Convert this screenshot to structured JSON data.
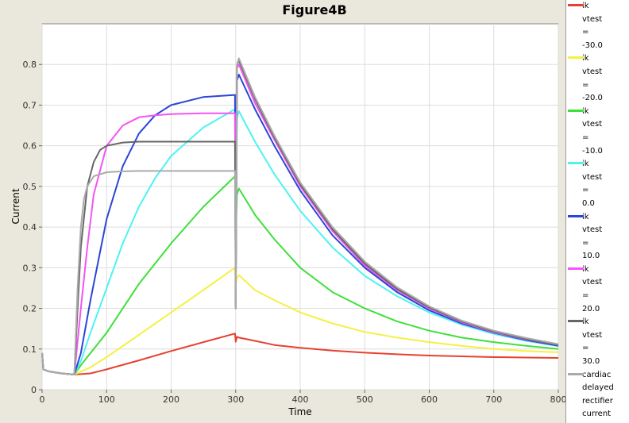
{
  "chart_data": {
    "type": "line",
    "title": "Figure4B",
    "xlabel": "Time",
    "ylabel": "Current",
    "xlim": [
      0,
      800
    ],
    "ylim": [
      0,
      0.9
    ],
    "xticks": [
      "0",
      "100",
      "200",
      "300",
      "400",
      "500",
      "600",
      "700",
      "800"
    ],
    "yticks": [
      "0",
      "0.1",
      "0.2",
      "0.3",
      "0.4",
      "0.5",
      "0.6",
      "0.7",
      "0.8"
    ],
    "grid": true,
    "legend_position": "right",
    "series": [
      {
        "name": "ik\nvtest\n=\n-30.0",
        "color": "#e8412f",
        "x": [
          0,
          2,
          10,
          30,
          50,
          75,
          100,
          150,
          200,
          250,
          299,
          300,
          302,
          305,
          330,
          360,
          400,
          450,
          500,
          550,
          600,
          650,
          700,
          750,
          800
        ],
        "y": [
          0.09,
          0.05,
          0.045,
          0.04,
          0.037,
          0.04,
          0.05,
          0.072,
          0.095,
          0.117,
          0.138,
          0.118,
          0.13,
          0.128,
          0.12,
          0.11,
          0.103,
          0.096,
          0.091,
          0.087,
          0.084,
          0.082,
          0.08,
          0.079,
          0.078
        ]
      },
      {
        "name": "ik\nvtest\n=\n-20.0",
        "color": "#f5f043",
        "x": [
          0,
          2,
          10,
          30,
          50,
          75,
          100,
          150,
          200,
          250,
          299,
          300,
          302,
          305,
          330,
          360,
          400,
          450,
          500,
          550,
          600,
          650,
          700,
          750,
          800
        ],
        "y": [
          0.09,
          0.05,
          0.045,
          0.04,
          0.037,
          0.055,
          0.08,
          0.135,
          0.19,
          0.245,
          0.3,
          0.26,
          0.275,
          0.282,
          0.245,
          0.22,
          0.19,
          0.163,
          0.142,
          0.128,
          0.117,
          0.108,
          0.1,
          0.095,
          0.092
        ]
      },
      {
        "name": "ik\nvtest\n=\n-10.0",
        "color": "#3fe03a",
        "x": [
          0,
          2,
          10,
          30,
          50,
          60,
          75,
          100,
          150,
          200,
          250,
          299,
          300,
          302,
          305,
          330,
          360,
          400,
          450,
          500,
          550,
          600,
          650,
          700,
          750,
          800
        ],
        "y": [
          0.09,
          0.05,
          0.045,
          0.04,
          0.037,
          0.06,
          0.09,
          0.14,
          0.26,
          0.36,
          0.45,
          0.525,
          0.37,
          0.48,
          0.495,
          0.43,
          0.37,
          0.3,
          0.24,
          0.2,
          0.168,
          0.145,
          0.128,
          0.117,
          0.108,
          0.1
        ]
      },
      {
        "name": "ik\nvtest\n=\n0.0",
        "color": "#4ff2f2",
        "x": [
          0,
          2,
          10,
          30,
          50,
          60,
          75,
          100,
          125,
          150,
          175,
          200,
          250,
          299,
          300,
          302,
          305,
          330,
          360,
          400,
          450,
          500,
          550,
          600,
          650,
          700,
          750,
          800
        ],
        "y": [
          0.09,
          0.05,
          0.045,
          0.04,
          0.037,
          0.07,
          0.14,
          0.25,
          0.36,
          0.45,
          0.52,
          0.575,
          0.645,
          0.69,
          0.25,
          0.67,
          0.685,
          0.61,
          0.53,
          0.44,
          0.35,
          0.28,
          0.23,
          0.19,
          0.16,
          0.137,
          0.12,
          0.107
        ]
      },
      {
        "name": "ik\nvtest\n=\n10.0",
        "color": "#2b45d8",
        "x": [
          0,
          2,
          10,
          30,
          50,
          60,
          75,
          100,
          125,
          150,
          175,
          200,
          250,
          299,
          300,
          302,
          305,
          330,
          360,
          400,
          450,
          500,
          550,
          600,
          650,
          700,
          750,
          800
        ],
        "y": [
          0.09,
          0.05,
          0.045,
          0.04,
          0.037,
          0.09,
          0.22,
          0.42,
          0.55,
          0.63,
          0.675,
          0.7,
          0.72,
          0.725,
          0.21,
          0.76,
          0.775,
          0.69,
          0.6,
          0.49,
          0.38,
          0.3,
          0.24,
          0.195,
          0.163,
          0.14,
          0.122,
          0.108
        ]
      },
      {
        "name": "ik\nvtest\n=\n20.0",
        "color": "#f454f4",
        "x": [
          0,
          2,
          10,
          30,
          50,
          60,
          70,
          80,
          100,
          125,
          150,
          175,
          200,
          250,
          299,
          300,
          302,
          305,
          330,
          360,
          400,
          450,
          500,
          550,
          600,
          650,
          700,
          750,
          800
        ],
        "y": [
          0.09,
          0.05,
          0.045,
          0.04,
          0.037,
          0.2,
          0.35,
          0.48,
          0.6,
          0.65,
          0.67,
          0.675,
          0.678,
          0.68,
          0.68,
          0.2,
          0.79,
          0.8,
          0.705,
          0.615,
          0.5,
          0.39,
          0.305,
          0.245,
          0.2,
          0.166,
          0.141,
          0.124,
          0.11
        ]
      },
      {
        "name": "ik\nvtest\n=\n30.0",
        "color": "#666666",
        "x": [
          0,
          2,
          10,
          30,
          50,
          55,
          60,
          70,
          80,
          90,
          100,
          125,
          150,
          200,
          250,
          299,
          300,
          302,
          305,
          330,
          360,
          400,
          450,
          500,
          550,
          600,
          650,
          700,
          750,
          800
        ],
        "y": [
          0.09,
          0.05,
          0.045,
          0.04,
          0.037,
          0.2,
          0.35,
          0.5,
          0.56,
          0.59,
          0.6,
          0.608,
          0.61,
          0.61,
          0.61,
          0.61,
          0.2,
          0.8,
          0.81,
          0.715,
          0.62,
          0.505,
          0.395,
          0.31,
          0.248,
          0.202,
          0.168,
          0.143,
          0.125,
          0.11
        ]
      },
      {
        "name": "cardiac\ndelayed\nrectifier\ncurrent\nvtest",
        "color": "#aaaaaa",
        "x": [
          0,
          2,
          10,
          30,
          50,
          55,
          60,
          65,
          70,
          80,
          100,
          125,
          150,
          200,
          250,
          299,
          300,
          302,
          305,
          330,
          360,
          400,
          450,
          500,
          550,
          600,
          650,
          700,
          750,
          800
        ],
        "y": [
          0.09,
          0.05,
          0.045,
          0.04,
          0.037,
          0.25,
          0.4,
          0.47,
          0.5,
          0.525,
          0.535,
          0.537,
          0.538,
          0.538,
          0.538,
          0.538,
          0.2,
          0.8,
          0.815,
          0.72,
          0.625,
          0.51,
          0.4,
          0.315,
          0.252,
          0.205,
          0.17,
          0.145,
          0.127,
          0.112
        ]
      }
    ]
  }
}
